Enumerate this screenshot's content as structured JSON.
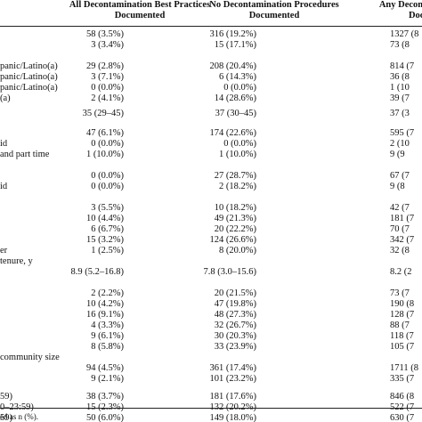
{
  "headers": {
    "col1": [
      "All Decontamination Best Practices",
      "Documented"
    ],
    "col2": [
      "No Decontamination Procedures",
      "Documented"
    ],
    "col3": [
      "Any Decontamination",
      "Docum"
    ]
  },
  "rows": [
    {
      "label": "",
      "c1": "58 (3.5%)",
      "c2": "316 (19.2%)",
      "c3": "1327 (8"
    },
    {
      "label": "",
      "c1": "3 (3.4%)",
      "c2": "15 (17.1%)",
      "c3": "73 (8"
    },
    {
      "label": "panic/Latino(a)",
      "c1": "29 (2.8%)",
      "c2": "208 (20.4%)",
      "c3": "814 (7"
    },
    {
      "label": "panic/Latino(a)",
      "c1": "3 (7.1%)",
      "c2": "6 (14.3%)",
      "c3": "36 (8"
    },
    {
      "label": "panic/Latino(a)",
      "c1": "0 (0.0%)",
      "c2": "0 (0.0%)",
      "c3": "1 (10"
    },
    {
      "label": "(a)",
      "c1": "2 (4.1%)",
      "c2": "14 (28.6%)",
      "c3": "39 (7"
    },
    {
      "label": "",
      "c1": "35  (29–45)",
      "c2": "37  (30–45)",
      "c3": "37  (3"
    },
    {
      "label": "",
      "c1": "47 (6.1%)",
      "c2": "174 (22.6%)",
      "c3": "595 (7"
    },
    {
      "label": "id",
      "c1": "0 (0.0%)",
      "c2": "0 (0.0%)",
      "c3": "2 (10"
    },
    {
      "label": "and part time",
      "c1": "1 (10.0%)",
      "c2": "1 (10.0%)",
      "c3": "9 (9"
    },
    {
      "label": "",
      "c1": "0 (0.0%)",
      "c2": "27 (28.7%)",
      "c3": "67 (7"
    },
    {
      "label": "id",
      "c1": "0 (0.0%)",
      "c2": "2 (18.2%)",
      "c3": "9 (8"
    },
    {
      "label": "",
      "c1": "3 (5.5%)",
      "c2": "10 (18.2%)",
      "c3": "42 (7"
    },
    {
      "label": "",
      "c1": "10 (4.4%)",
      "c2": "49 (21.3%)",
      "c3": "181 (7"
    },
    {
      "label": "",
      "c1": "6 (6.7%)",
      "c2": "20 (22.2%)",
      "c3": "70 (7"
    },
    {
      "label": "",
      "c1": "15 (3.2%)",
      "c2": "124 (26.6%)",
      "c3": "342 (7"
    },
    {
      "label": "er",
      "c1": "1 (2.5%)",
      "c2": "8 (20.0%)",
      "c3": "32 (8"
    },
    {
      "label": "tenure, y",
      "c1": "",
      "c2": "",
      "c3": ""
    },
    {
      "label": "",
      "c1": "8.9 (5.2–16.8)",
      "c2": "7.8 (3.0–15.6)",
      "c3": "8.2 (2"
    },
    {
      "label": "",
      "c1": "2 (2.2%)",
      "c2": "20 (21.5%)",
      "c3": "73 (7"
    },
    {
      "label": "",
      "c1": "10 (4.2%)",
      "c2": "47 (19.8%)",
      "c3": "190 (8"
    },
    {
      "label": "",
      "c1": "16 (9.1%)",
      "c2": "48 (27.3%)",
      "c3": "128 (7"
    },
    {
      "label": "",
      "c1": "4 (3.3%)",
      "c2": "32 (26.7%)",
      "c3": "88 (7"
    },
    {
      "label": "",
      "c1": "9 (6.1%)",
      "c2": "30 (20.3%)",
      "c3": "118 (7"
    },
    {
      "label": "",
      "c1": "8 (5.8%)",
      "c2": "33 (23.9%)",
      "c3": "105 (7"
    },
    {
      "label": "community size",
      "c1": "",
      "c2": "",
      "c3": ""
    },
    {
      "label": "",
      "c1": "94 (4.5%)",
      "c2": "361 (17.4%)",
      "c3": "1711 (8"
    },
    {
      "label": "",
      "c1": "9 (2.1%)",
      "c2": "101 (23.2%)",
      "c3": "335 (7"
    },
    {
      "label": "59)",
      "c1": "38 (3.7%)",
      "c2": "181 (17.6%)",
      "c3": "846 (8"
    },
    {
      "label": "0–23:59)",
      "c1": "15 (2.3%)",
      "c2": "132 (20.2%)",
      "c3": "522 (7"
    },
    {
      "label": "59)",
      "c1": "50 (6.0%)",
      "c2": "149 (18.0%)",
      "c3": "630 (7"
    }
  ],
  "footnote": "ed as n (%)."
}
